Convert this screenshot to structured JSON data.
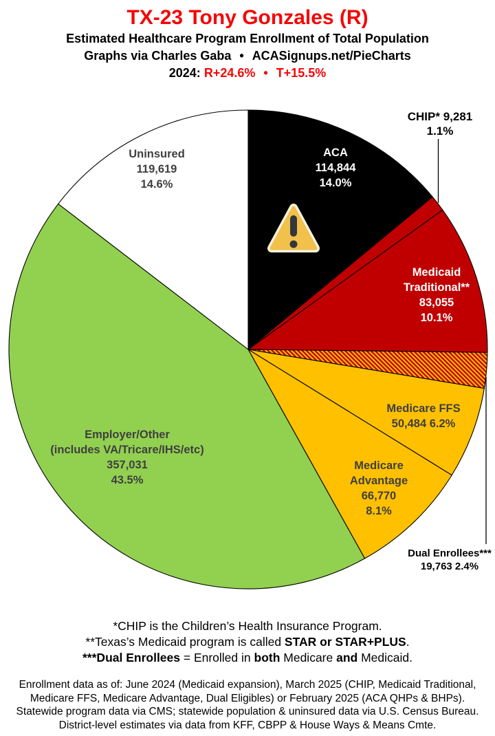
{
  "header": {
    "title": "TX-23 Tony Gonzales (R)",
    "subtitle": "Estimated Healthcare Program Enrollment of Total Population",
    "credit": "Graphs via Charles Gaba",
    "credit_separator": "•",
    "credit_site": "ACASignups.net/PieCharts",
    "lean_year": "2024:",
    "lean_r": "R+24.6%",
    "lean_separator": "•",
    "lean_t": "T+15.5%"
  },
  "colors": {
    "title_red": "#f40606",
    "lean_red": "#f40606",
    "label_dark": "#3f3f3f",
    "label_light": "#ffffff"
  },
  "chart_data": {
    "type": "pie",
    "title": "Estimated Healthcare Program Enrollment of Total Population",
    "start_angle_deg": 0,
    "direction": "clockwise",
    "legend_position": "labels-on-slices",
    "hatch": {
      "base": "#c00000",
      "stripe": "#ffc000"
    },
    "slices": [
      {
        "name": "ACA",
        "value": 114844,
        "pct": 14.0,
        "color": "#000000",
        "label_lines": [
          "ACA",
          "114,844",
          "14.0%"
        ]
      },
      {
        "name": "CHIP",
        "value": 9281,
        "pct": 1.1,
        "color": "#c00000",
        "label_lines": [
          "CHIP* 9,281",
          "1.1%"
        ]
      },
      {
        "name": "Medicaid Traditional",
        "value": 83055,
        "pct": 10.1,
        "color": "#c00000",
        "label_lines": [
          "Medicaid",
          "Traditional**",
          "83,055",
          "10.1%"
        ]
      },
      {
        "name": "Dual Enrollees",
        "value": 19763,
        "pct": 2.4,
        "color": "hatch",
        "label_lines": [
          "Dual Enrollees***",
          "19,763 2.4%"
        ]
      },
      {
        "name": "Medicare FFS",
        "value": 50484,
        "pct": 6.2,
        "color": "#ffc000",
        "label_lines": [
          "Medicare FFS",
          "50,484 6.2%"
        ]
      },
      {
        "name": "Medicare Advantage",
        "value": 66770,
        "pct": 8.1,
        "color": "#ffc000",
        "label_lines": [
          "Medicare",
          "Advantage",
          "66,770",
          "8.1%"
        ]
      },
      {
        "name": "Employer/Other",
        "value": 357031,
        "pct": 43.5,
        "color": "#92d050",
        "label_lines": [
          "Employer/Other",
          "(includes VA/Tricare/IHS/etc)",
          "357,031",
          "43.5%"
        ]
      },
      {
        "name": "Uninsured",
        "value": 119619,
        "pct": 14.6,
        "color": "#ffffff",
        "label_lines": [
          "Uninsured",
          "119,619",
          "14.6%"
        ]
      }
    ]
  },
  "footnotes": {
    "lines": [
      [
        {
          "text": "*CHIP is the Children’s Health Insurance Program.",
          "bold": false
        }
      ],
      [
        {
          "text": "**Texas’s Medicaid program is called ",
          "bold": false
        },
        {
          "text": "STAR or STAR+PLUS",
          "bold": true
        },
        {
          "text": ".",
          "bold": false
        }
      ],
      [
        {
          "text": "***Dual Enrollees",
          "bold": true
        },
        {
          "text": " = Enrolled in ",
          "bold": false
        },
        {
          "text": "both",
          "bold": true
        },
        {
          "text": " Medicare ",
          "bold": false
        },
        {
          "text": "and",
          "bold": true
        },
        {
          "text": " Medicaid.",
          "bold": false
        }
      ]
    ]
  },
  "source": {
    "lines": [
      "Enrollment data as of: June 2024 (Medicaid expansion), March 2025 (CHIP, Medicaid Traditional,",
      "Medicare FFS, Medicare Advantage, Dual Eligibles) or February 2025 (ACA QHPs & BHPs).",
      "Statewide program data via CMS; statewide population & uninsured data via U.S. Census Bureau.",
      "District-level estimates via data from KFF, CBPP & House Ways & Means Cmte."
    ]
  }
}
